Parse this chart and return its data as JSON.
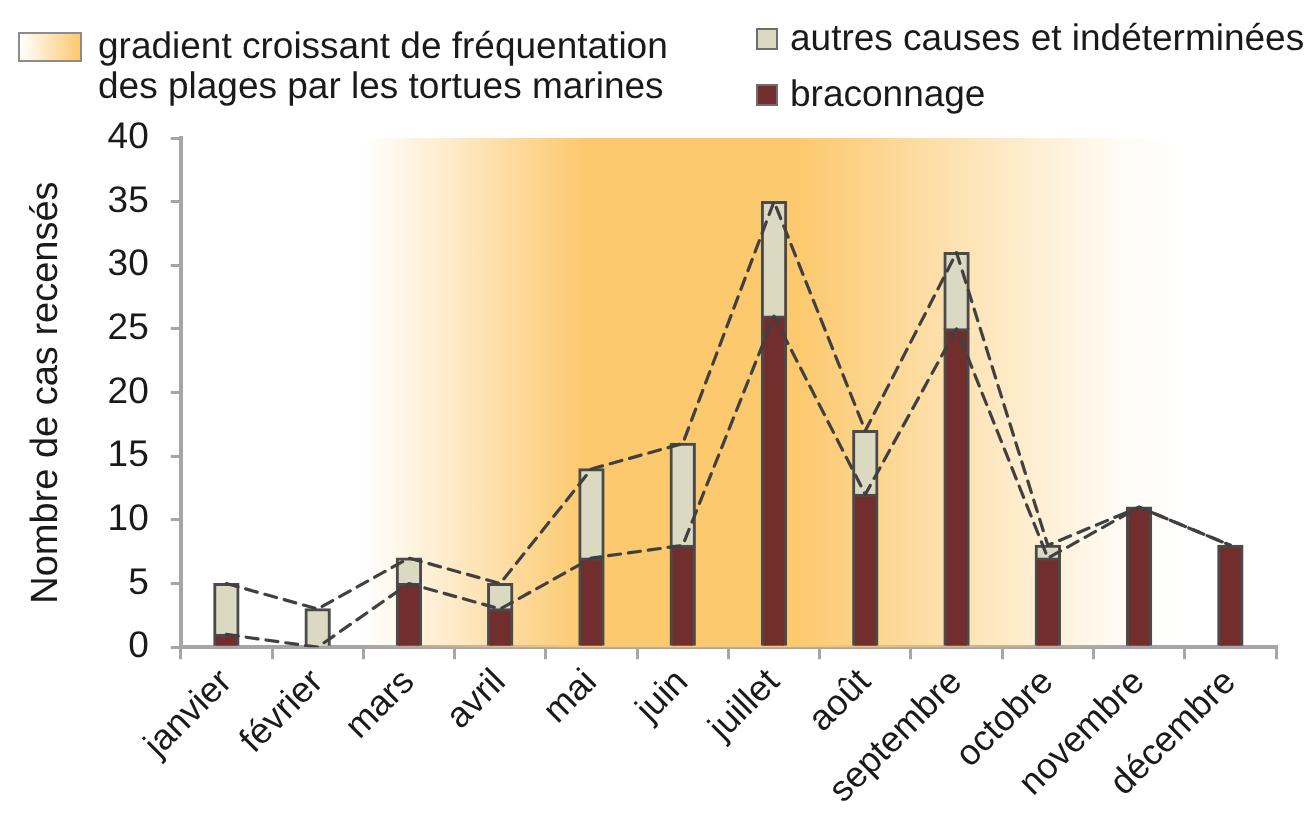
{
  "chart_data": {
    "type": "bar",
    "stacked": true,
    "ylabel": "Nombre de cas recensés",
    "categories": [
      "janvier",
      "février",
      "mars",
      "avril",
      "mai",
      "juin",
      "juillet",
      "août",
      "septembre",
      "octobre",
      "novembre",
      "décembre"
    ],
    "series": [
      {
        "name": "braconnage",
        "color": "#722d2d",
        "values": [
          1,
          0,
          5,
          3,
          7,
          8,
          26,
          12,
          25,
          7,
          11,
          8
        ]
      },
      {
        "name": "autres causes et indéterminées",
        "color": "#dcd9c3",
        "values": [
          4,
          3,
          2,
          2,
          7,
          8,
          9,
          5,
          6,
          1,
          0,
          0
        ]
      },
      {
        "type": "line",
        "color": "#404040",
        "values": [
          5,
          3,
          7,
          5,
          14,
          16,
          35,
          17,
          31,
          8,
          11,
          8
        ]
      },
      {
        "type": "line",
        "color": "#404040",
        "values": [
          1,
          0,
          5,
          3,
          7,
          8,
          26,
          12,
          25,
          7,
          11,
          8
        ]
      }
    ],
    "ylim": [
      0,
      40
    ],
    "yticks": [
      0,
      5,
      10,
      15,
      20,
      25,
      30,
      35,
      40
    ],
    "bands": [
      {
        "axis": "x",
        "from": "mars",
        "to": "novembre",
        "label": "gradient croissant de fréquentation des plages par les tortues marines",
        "color": "#fcc96e"
      }
    ],
    "legend": "top",
    "line_style": "dashed",
    "marker": "none"
  }
}
